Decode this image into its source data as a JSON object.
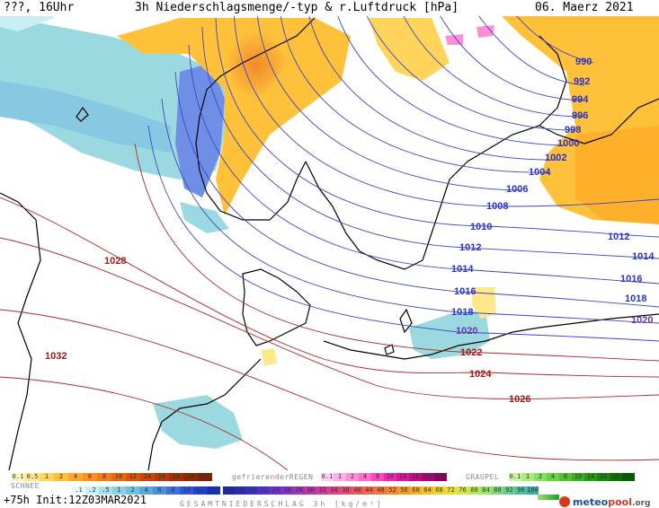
{
  "header": {
    "left": "???, 16Uhr",
    "title": "3h Niederschlagsmenge/-typ & r.Luftdruck [hPa]",
    "date": "06. Maerz 2021"
  },
  "isobars": {
    "blue": [
      "990",
      "992",
      "994",
      "996",
      "998",
      "1000",
      "1002",
      "1004",
      "1006",
      "1008",
      "1010",
      "1012",
      "1012",
      "1014",
      "1014",
      "1016",
      "1016",
      "1018",
      "1018",
      "1020",
      "1020"
    ],
    "red": [
      "1022",
      "1024",
      "1026",
      "1028",
      "1032"
    ]
  },
  "legend": {
    "rain_label": "",
    "freezing_label": "gefrierenderREGEN",
    "graupel_label": "GRAUPEL",
    "snow_label": "SCHNEE",
    "gesamt_label": "GESAMTNIEDERSCHLAG 3h [kg/m²]",
    "scale_rain": [
      "0.1",
      "0.5",
      "1",
      "2",
      "4",
      "6",
      "8",
      "10",
      "12",
      "14",
      "16",
      "18",
      "20",
      "25+"
    ],
    "scale_freezing": [
      "0.1",
      "1",
      "2",
      "4",
      "8",
      "10",
      "14",
      "16",
      "20",
      "25+"
    ],
    "scale_graupel": [
      "0.1",
      "1",
      "2",
      "4",
      "8",
      "10",
      "14",
      "16",
      "20",
      "25+"
    ],
    "scale_snow": [
      ".1",
      ".2",
      ".5",
      "1",
      "2",
      "4",
      "6",
      "8",
      "10",
      "12",
      "14"
    ],
    "scale_total": [
      "16",
      "18",
      "20",
      "22",
      "24",
      "26",
      "28",
      "30",
      "32",
      "34",
      "36",
      "40",
      "44",
      "48",
      "52",
      "56",
      "60",
      "64",
      "68",
      "72",
      "76",
      "80",
      "84",
      "88",
      "92",
      "96",
      "100"
    ],
    "footer": "+75h Init:12Z03MAR2021",
    "brand_a": "meteo",
    "brand_b": "pool",
    "brand_c": ".org",
    "colors": {
      "rain": [
        "#fff7c0",
        "#ffe88a",
        "#ffd45a",
        "#ffbf3a",
        "#ffa82a",
        "#ff9020",
        "#f57a18",
        "#e86812",
        "#d9560c",
        "#c94608",
        "#b83a06",
        "#a63004",
        "#942603",
        "#822002"
      ],
      "freezing": [
        "#ffd0ef",
        "#ffb0e4",
        "#ff8ed8",
        "#ff6acc",
        "#ff48be",
        "#f02aae",
        "#d8189c",
        "#c00c88",
        "#a80476",
        "#900062"
      ],
      "graupel": [
        "#c8f5a0",
        "#a8ea80",
        "#88de60",
        "#6ad046",
        "#50c032",
        "#3aae24",
        "#289a18",
        "#1a8610",
        "#0e7208",
        "#065e04"
      ],
      "snow": [
        "#e8f8fb",
        "#c9eef5",
        "#a6e0ec",
        "#87d0e3",
        "#6fc0dc",
        "#5aa8db",
        "#4a8ee0",
        "#3b72e0",
        "#2d58dc",
        "#2142cf",
        "#1831bd"
      ],
      "total": [
        "#1c2aa8",
        "#2a2db9",
        "#3a2fc8",
        "#5331cf",
        "#6a2fd0",
        "#8530c9",
        "#a032bd",
        "#b835ad",
        "#cc3a9b",
        "#d94285",
        "#e34c70",
        "#e9585c",
        "#ed664a",
        "#f1763a",
        "#f4872e",
        "#f69a26",
        "#f7ad22",
        "#f6c022",
        "#f1d22a",
        "#e6df36",
        "#d2e645",
        "#b8e856",
        "#9be268",
        "#7fd97a",
        "#64cd8b",
        "#4cc09a",
        "#38b0a6"
      ]
    }
  },
  "colors": {
    "isobar_blue": "#3c45c8",
    "isobar_red": "#b0282a",
    "label_blue": "#2a33c8",
    "label_purple": "#6a3aa8",
    "label_red": "#a01818",
    "coast": "#000000",
    "snow_shade": "#9bd9e0",
    "rain_shade": "#ffc13a"
  }
}
